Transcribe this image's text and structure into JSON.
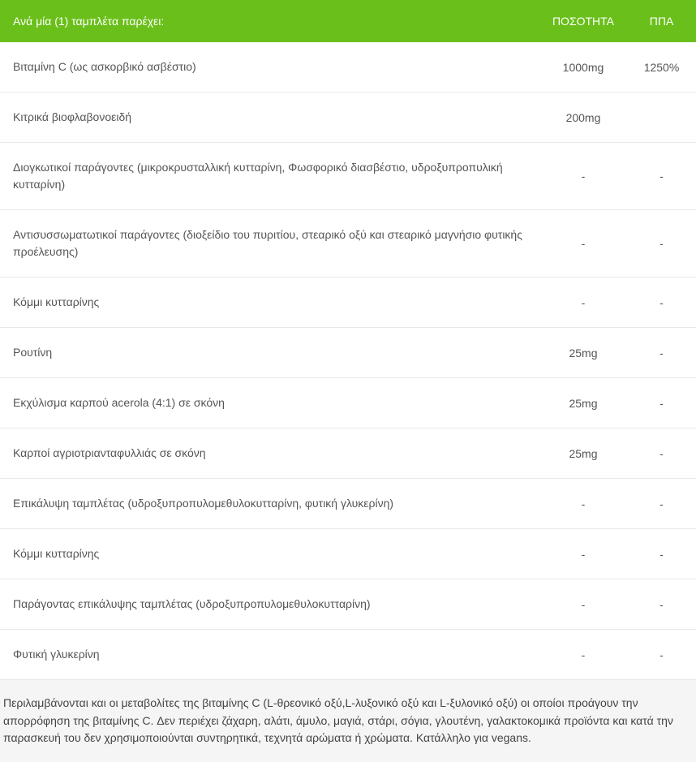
{
  "table": {
    "header": {
      "title": "Ανά μία (1) ταμπλέτα παρέχει:",
      "quantity": "ΠΟΣΟΤΗΤΑ",
      "rda": "ΠΠΑ"
    },
    "rows": [
      {
        "name": "Βιταμίνη C (ως ασκορβικό ασβέστιο)",
        "quantity": "1000mg",
        "rda": "1250%"
      },
      {
        "name": "Κιτρικά βιοφλαβονοειδή",
        "quantity": "200mg",
        "rda": ""
      },
      {
        "name": "Διογκωτικοί παράγοντες (μικροκρυσταλλική κυτταρίνη, Φωσφορικό διασβέστιο, υδροξυπροπυλική κυτταρίνη)",
        "quantity": "-",
        "rda": "-"
      },
      {
        "name": "Αντισυσσωματωτικοί παράγοντες (διοξείδιο του πυριτίου, στεαρικό οξύ και στεαρικό μαγνήσιο φυτικής προέλευσης)",
        "quantity": "-",
        "rda": "-"
      },
      {
        "name": "Κόμμι κυτταρίνης",
        "quantity": "-",
        "rda": "-"
      },
      {
        "name": "Ρουτίνη",
        "quantity": "25mg",
        "rda": "-"
      },
      {
        "name": "Εκχύλισμα καρπού acerola (4:1) σε σκόνη",
        "quantity": "25mg",
        "rda": "-"
      },
      {
        "name": "Καρποί αγριοτριανταφυλλιάς σε σκόνη",
        "quantity": "25mg",
        "rda": "-"
      },
      {
        "name": "Επικάλυψη ταμπλέτας (υδροξυπροπυλομεθυλοκυτταρίνη, φυτική γλυκερίνη)",
        "quantity": "-",
        "rda": "-"
      },
      {
        "name": "Κόμμι κυτταρίνης",
        "quantity": "-",
        "rda": "-"
      },
      {
        "name": "Παράγοντας επικάλυψης ταμπλέτας (υδροξυπροπυλομεθυλοκυτταρίνη)",
        "quantity": "-",
        "rda": "-"
      },
      {
        "name": "Φυτική γλυκερίνη",
        "quantity": "-",
        "rda": "-"
      }
    ]
  },
  "footer_text": "Περιλαμβάνονται και οι μεταβολίτες της βιταμίνης C (L-θρεονικό οξύ,L-λυξονικό οξύ και L-ξυλονικό οξύ) οι οποίοι προάγουν την απορρόφηση της βιταμίνης C. Δεν περιέχει ζάχαρη, αλάτι, άμυλο, μαγιά, στάρι, σόγια, γλουτένη, γαλακτοκομικά προϊόντα και κατά την παρασκευή του δεν χρησιμοποιούνται συντηρητικά, τεχνητά αρώματα ή χρώματα. Κατάλληλο για vegans.",
  "colors": {
    "header_bg": "#6abf1a",
    "header_text": "#ffffff",
    "row_bg": "#ffffff",
    "row_border": "#e8e8e8",
    "body_text": "#555555",
    "footer_bg": "#f5f5f5",
    "footer_text": "#444444"
  }
}
